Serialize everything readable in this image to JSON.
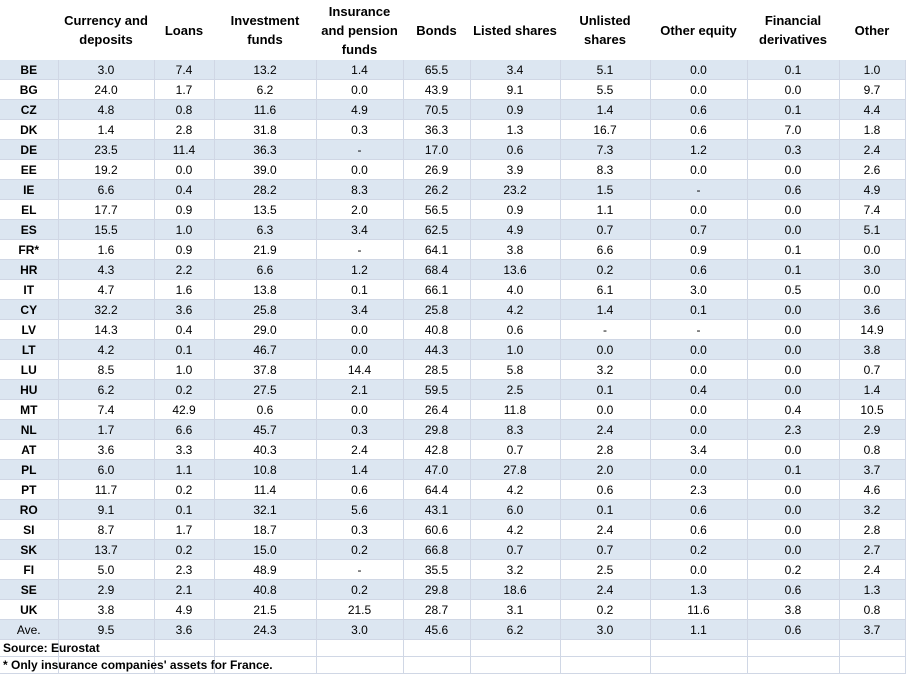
{
  "header": {
    "columns": [
      "",
      "Currency and deposits",
      "Loans",
      "Investment funds",
      "Insurance and pension funds",
      "Bonds",
      "Listed shares",
      "Unlisted shares",
      "Other equity",
      "Financial derivatives",
      "Other"
    ]
  },
  "rows": [
    [
      "BE",
      "3.0",
      "7.4",
      "13.2",
      "1.4",
      "65.5",
      "3.4",
      "5.1",
      "0.0",
      "0.1",
      "1.0"
    ],
    [
      "BG",
      "24.0",
      "1.7",
      "6.2",
      "0.0",
      "43.9",
      "9.1",
      "5.5",
      "0.0",
      "0.0",
      "9.7"
    ],
    [
      "CZ",
      "4.8",
      "0.8",
      "11.6",
      "4.9",
      "70.5",
      "0.9",
      "1.4",
      "0.6",
      "0.1",
      "4.4"
    ],
    [
      "DK",
      "1.4",
      "2.8",
      "31.8",
      "0.3",
      "36.3",
      "1.3",
      "16.7",
      "0.6",
      "7.0",
      "1.8"
    ],
    [
      "DE",
      "23.5",
      "11.4",
      "36.3",
      "-",
      "17.0",
      "0.6",
      "7.3",
      "1.2",
      "0.3",
      "2.4"
    ],
    [
      "EE",
      "19.2",
      "0.0",
      "39.0",
      "0.0",
      "26.9",
      "3.9",
      "8.3",
      "0.0",
      "0.0",
      "2.6"
    ],
    [
      "IE",
      "6.6",
      "0.4",
      "28.2",
      "8.3",
      "26.2",
      "23.2",
      "1.5",
      "-",
      "0.6",
      "4.9"
    ],
    [
      "EL",
      "17.7",
      "0.9",
      "13.5",
      "2.0",
      "56.5",
      "0.9",
      "1.1",
      "0.0",
      "0.0",
      "7.4"
    ],
    [
      "ES",
      "15.5",
      "1.0",
      "6.3",
      "3.4",
      "62.5",
      "4.9",
      "0.7",
      "0.7",
      "0.0",
      "5.1"
    ],
    [
      "FR*",
      "1.6",
      "0.9",
      "21.9",
      "-",
      "64.1",
      "3.8",
      "6.6",
      "0.9",
      "0.1",
      "0.0"
    ],
    [
      "HR",
      "4.3",
      "2.2",
      "6.6",
      "1.2",
      "68.4",
      "13.6",
      "0.2",
      "0.6",
      "0.1",
      "3.0"
    ],
    [
      "IT",
      "4.7",
      "1.6",
      "13.8",
      "0.1",
      "66.1",
      "4.0",
      "6.1",
      "3.0",
      "0.5",
      "0.0"
    ],
    [
      "CY",
      "32.2",
      "3.6",
      "25.8",
      "3.4",
      "25.8",
      "4.2",
      "1.4",
      "0.1",
      "0.0",
      "3.6"
    ],
    [
      "LV",
      "14.3",
      "0.4",
      "29.0",
      "0.0",
      "40.8",
      "0.6",
      "-",
      "-",
      "0.0",
      "14.9"
    ],
    [
      "LT",
      "4.2",
      "0.1",
      "46.7",
      "0.0",
      "44.3",
      "1.0",
      "0.0",
      "0.0",
      "0.0",
      "3.8"
    ],
    [
      "LU",
      "8.5",
      "1.0",
      "37.8",
      "14.4",
      "28.5",
      "5.8",
      "3.2",
      "0.0",
      "0.0",
      "0.7"
    ],
    [
      "HU",
      "6.2",
      "0.2",
      "27.5",
      "2.1",
      "59.5",
      "2.5",
      "0.1",
      "0.4",
      "0.0",
      "1.4"
    ],
    [
      "MT",
      "7.4",
      "42.9",
      "0.6",
      "0.0",
      "26.4",
      "11.8",
      "0.0",
      "0.0",
      "0.4",
      "10.5"
    ],
    [
      "NL",
      "1.7",
      "6.6",
      "45.7",
      "0.3",
      "29.8",
      "8.3",
      "2.4",
      "0.0",
      "2.3",
      "2.9"
    ],
    [
      "AT",
      "3.6",
      "3.3",
      "40.3",
      "2.4",
      "42.8",
      "0.7",
      "2.8",
      "3.4",
      "0.0",
      "0.8"
    ],
    [
      "PL",
      "6.0",
      "1.1",
      "10.8",
      "1.4",
      "47.0",
      "27.8",
      "2.0",
      "0.0",
      "0.1",
      "3.7"
    ],
    [
      "PT",
      "11.7",
      "0.2",
      "11.4",
      "0.6",
      "64.4",
      "4.2",
      "0.6",
      "2.3",
      "0.0",
      "4.6"
    ],
    [
      "RO",
      "9.1",
      "0.1",
      "32.1",
      "5.6",
      "43.1",
      "6.0",
      "0.1",
      "0.6",
      "0.0",
      "3.2"
    ],
    [
      "SI",
      "8.7",
      "1.7",
      "18.7",
      "0.3",
      "60.6",
      "4.2",
      "2.4",
      "0.6",
      "0.0",
      "2.8"
    ],
    [
      "SK",
      "13.7",
      "0.2",
      "15.0",
      "0.2",
      "66.8",
      "0.7",
      "0.7",
      "0.2",
      "0.0",
      "2.7"
    ],
    [
      "FI",
      "5.0",
      "2.3",
      "48.9",
      "-",
      "35.5",
      "3.2",
      "2.5",
      "0.0",
      "0.2",
      "2.4"
    ],
    [
      "SE",
      "2.9",
      "2.1",
      "40.8",
      "0.2",
      "29.8",
      "18.6",
      "2.4",
      "1.3",
      "0.6",
      "1.3"
    ],
    [
      "UK",
      "3.8",
      "4.9",
      "21.5",
      "21.5",
      "28.7",
      "3.1",
      "0.2",
      "11.6",
      "3.8",
      "0.8"
    ],
    [
      "Ave.",
      "9.5",
      "3.6",
      "24.3",
      "3.0",
      "45.6",
      "6.2",
      "3.0",
      "1.1",
      "0.6",
      "3.7"
    ]
  ],
  "footnotes": {
    "source": "Source: Eurostat",
    "note": "* Only insurance companies' assets for France."
  },
  "colors": {
    "row_shade": "#dce6f1",
    "gridline": "#d0d7e5"
  }
}
